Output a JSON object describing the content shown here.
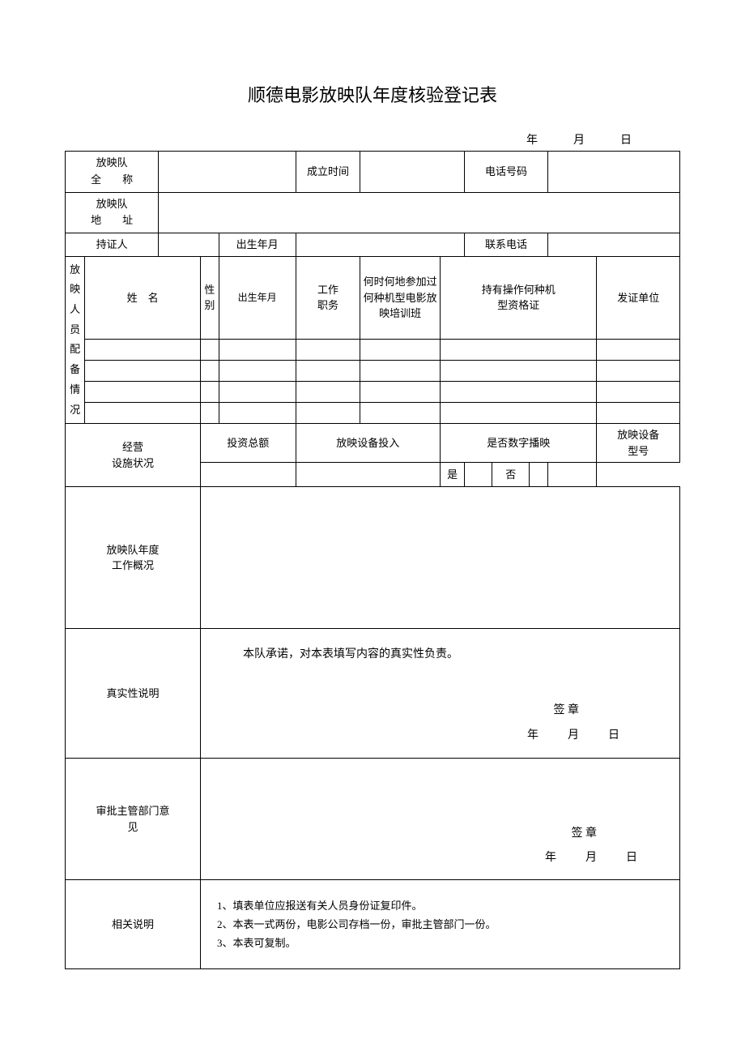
{
  "title": "顺德电影放映队年度核验登记表",
  "topDate": {
    "year": "年",
    "month": "月",
    "day": "日"
  },
  "row1": {
    "fullNameLabel1": "放映队",
    "fullNameLabel2": "全　　称",
    "foundTimeLabel": "成立时间",
    "phoneLabel": "电话号码"
  },
  "row2": {
    "addressLabel1": "放映队",
    "addressLabel2": "地　　址"
  },
  "row3": {
    "holderLabel": "持证人",
    "birthLabel": "出生年月",
    "contactLabel": "联系电话"
  },
  "personnel": {
    "sideLabel": "放<br>映<br>人<br>员<br>配<br>备<br>情<br>况",
    "headers": {
      "name": "姓　名",
      "gender": "性别",
      "birth": "出生年月",
      "jobDuty": "工作<br>职务",
      "training": "何时何地参加过<br>何种机型电影放<br>映培训班",
      "certificate": "持有操作何种机<br>型资格证",
      "issuer": "发证单位"
    }
  },
  "facilities": {
    "label": "经营<br>设施状况",
    "totalInvest": "投资总额",
    "equipInvest": "放映设备投入",
    "isDigital": "是否数字播映",
    "equipModel": "放映设备<br>型号",
    "yes": "是",
    "no": "否"
  },
  "workSummary": {
    "label": "放映队年度<br>工作概况"
  },
  "authenticity": {
    "label": "真实性说明",
    "promise": "本队承诺，对本表填写内容的真实性负责。",
    "signLabel": "签 章",
    "dateLine": {
      "year": "年",
      "month": "月",
      "day": "日"
    }
  },
  "approval": {
    "label": "审批主管部门意<br>见",
    "signLabel": "签 章",
    "dateLine": {
      "year": "年",
      "month": "月",
      "day": "日"
    }
  },
  "notes": {
    "label": "相关说明",
    "item1": "1、填表单位应报送有关人员身份证复印件。",
    "item2": "2、本表一式两份，电影公司存档一份，审批主管部门一份。",
    "item3": "3、本表可复制。"
  },
  "styling": {
    "border_color": "#000000",
    "background_color": "#ffffff",
    "title_fontsize": 22,
    "body_fontsize": 13,
    "font_family": "SimSun"
  }
}
